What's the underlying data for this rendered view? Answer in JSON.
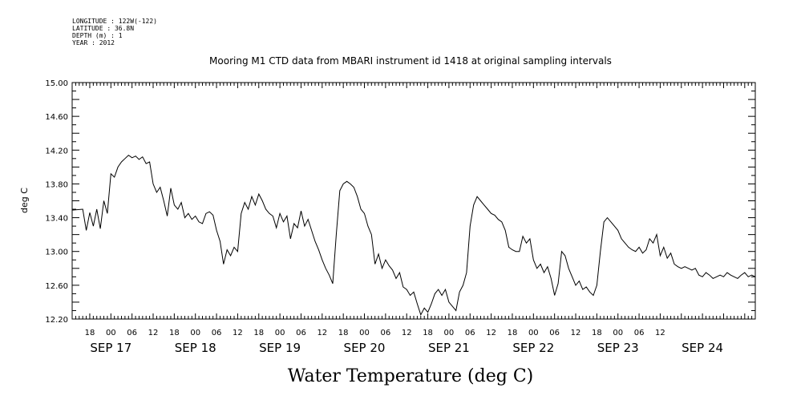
{
  "metadata": {
    "longitude": "LONGITUDE : 122W(-122)",
    "latitude": "LATITUDE : 36.8N",
    "depth": "DEPTH (m) : 1",
    "year": "YEAR : 2012"
  },
  "chart_data": {
    "type": "line",
    "title": "Mooring M1 CTD data from MBARI instrument id 1418 at original sampling intervals",
    "xlabel": "Water Temperature (deg C)",
    "ylabel": "deg C",
    "ylim": [
      12.2,
      15.0
    ],
    "xlim": [
      "2012-09-16 13:00",
      "2012-09-24 15:00"
    ],
    "y_ticks": [
      "12.20",
      "12.60",
      "13.00",
      "13.40",
      "13.80",
      "14.20",
      "14.60",
      "15.00"
    ],
    "x_hour_ticks": [
      {
        "t": "2012-09-16 18:00",
        "label": "18"
      },
      {
        "t": "2012-09-17 00:00",
        "label": "00"
      },
      {
        "t": "2012-09-17 06:00",
        "label": "06"
      },
      {
        "t": "2012-09-17 12:00",
        "label": "12"
      },
      {
        "t": "2012-09-17 18:00",
        "label": "18"
      },
      {
        "t": "2012-09-18 00:00",
        "label": "00"
      },
      {
        "t": "2012-09-18 06:00",
        "label": "06"
      },
      {
        "t": "2012-09-18 12:00",
        "label": "12"
      },
      {
        "t": "2012-09-18 18:00",
        "label": "18"
      },
      {
        "t": "2012-09-19 00:00",
        "label": "00"
      },
      {
        "t": "2012-09-19 06:00",
        "label": "06"
      },
      {
        "t": "2012-09-19 12:00",
        "label": "12"
      },
      {
        "t": "2012-09-19 18:00",
        "label": "18"
      },
      {
        "t": "2012-09-20 00:00",
        "label": "00"
      },
      {
        "t": "2012-09-20 06:00",
        "label": "06"
      },
      {
        "t": "2012-09-20 12:00",
        "label": "12"
      },
      {
        "t": "2012-09-20 18:00",
        "label": "18"
      },
      {
        "t": "2012-09-21 00:00",
        "label": "00"
      },
      {
        "t": "2012-09-21 06:00",
        "label": "06"
      },
      {
        "t": "2012-09-21 12:00",
        "label": "12"
      },
      {
        "t": "2012-09-21 18:00",
        "label": "18"
      },
      {
        "t": "2012-09-22 00:00",
        "label": "00"
      },
      {
        "t": "2012-09-22 06:00",
        "label": "06"
      },
      {
        "t": "2012-09-22 12:00",
        "label": "12"
      },
      {
        "t": "2012-09-22 18:00",
        "label": "18"
      },
      {
        "t": "2012-09-23 00:00",
        "label": "00"
      },
      {
        "t": "2012-09-23 06:00",
        "label": "06"
      },
      {
        "t": "2012-09-23 12:00",
        "label": "12"
      }
    ],
    "x_date_labels": [
      {
        "t": "2012-09-17 00:00",
        "label": "SEP 17"
      },
      {
        "t": "2012-09-18 00:00",
        "label": "SEP 18"
      },
      {
        "t": "2012-09-19 00:00",
        "label": "SEP 19"
      },
      {
        "t": "2012-09-20 00:00",
        "label": "SEP 20"
      },
      {
        "t": "2012-09-21 00:00",
        "label": "SEP 21"
      },
      {
        "t": "2012-09-22 00:00",
        "label": "SEP 22"
      },
      {
        "t": "2012-09-23 00:00",
        "label": "SEP 23"
      },
      {
        "t": "2012-09-24 00:00",
        "label": "SEP 24"
      }
    ],
    "grid": false,
    "series": [
      {
        "color": "#000000",
        "points": [
          [
            "2012-09-16 13:00",
            13.49
          ],
          [
            "2012-09-16 16:00",
            13.5
          ],
          [
            "2012-09-16 17:00",
            13.25
          ],
          [
            "2012-09-16 18:00",
            13.46
          ],
          [
            "2012-09-16 19:00",
            13.3
          ],
          [
            "2012-09-16 20:00",
            13.5
          ],
          [
            "2012-09-16 21:00",
            13.27
          ],
          [
            "2012-09-16 22:00",
            13.6
          ],
          [
            "2012-09-16 23:00",
            13.45
          ],
          [
            "2012-09-17 00:00",
            13.92
          ],
          [
            "2012-09-17 01:00",
            13.88
          ],
          [
            "2012-09-17 02:00",
            14.0
          ],
          [
            "2012-09-17 03:00",
            14.06
          ],
          [
            "2012-09-17 04:00",
            14.1
          ],
          [
            "2012-09-17 05:00",
            14.14
          ],
          [
            "2012-09-17 06:00",
            14.11
          ],
          [
            "2012-09-17 07:00",
            14.13
          ],
          [
            "2012-09-17 08:00",
            14.09
          ],
          [
            "2012-09-17 09:00",
            14.12
          ],
          [
            "2012-09-17 10:00",
            14.04
          ],
          [
            "2012-09-17 11:00",
            14.06
          ],
          [
            "2012-09-17 12:00",
            13.8
          ],
          [
            "2012-09-17 13:00",
            13.7
          ],
          [
            "2012-09-17 14:00",
            13.76
          ],
          [
            "2012-09-17 15:00",
            13.6
          ],
          [
            "2012-09-17 16:00",
            13.42
          ],
          [
            "2012-09-17 17:00",
            13.75
          ],
          [
            "2012-09-17 18:00",
            13.55
          ],
          [
            "2012-09-17 19:00",
            13.5
          ],
          [
            "2012-09-17 20:00",
            13.58
          ],
          [
            "2012-09-17 21:00",
            13.4
          ],
          [
            "2012-09-17 22:00",
            13.45
          ],
          [
            "2012-09-17 23:00",
            13.38
          ],
          [
            "2012-09-18 00:00",
            13.42
          ],
          [
            "2012-09-18 01:00",
            13.35
          ],
          [
            "2012-09-18 02:00",
            13.33
          ],
          [
            "2012-09-18 03:00",
            13.45
          ],
          [
            "2012-09-18 04:00",
            13.47
          ],
          [
            "2012-09-18 05:00",
            13.43
          ],
          [
            "2012-09-18 06:00",
            13.25
          ],
          [
            "2012-09-18 07:00",
            13.12
          ],
          [
            "2012-09-18 08:00",
            12.85
          ],
          [
            "2012-09-18 09:00",
            13.02
          ],
          [
            "2012-09-18 10:00",
            12.95
          ],
          [
            "2012-09-18 11:00",
            13.05
          ],
          [
            "2012-09-18 12:00",
            13.0
          ],
          [
            "2012-09-18 13:00",
            13.45
          ],
          [
            "2012-09-18 14:00",
            13.58
          ],
          [
            "2012-09-18 15:00",
            13.5
          ],
          [
            "2012-09-18 16:00",
            13.65
          ],
          [
            "2012-09-18 17:00",
            13.55
          ],
          [
            "2012-09-18 18:00",
            13.68
          ],
          [
            "2012-09-18 19:00",
            13.6
          ],
          [
            "2012-09-18 20:00",
            13.5
          ],
          [
            "2012-09-18 21:00",
            13.45
          ],
          [
            "2012-09-18 22:00",
            13.42
          ],
          [
            "2012-09-18 23:00",
            13.28
          ],
          [
            "2012-09-19 00:00",
            13.45
          ],
          [
            "2012-09-19 01:00",
            13.35
          ],
          [
            "2012-09-19 02:00",
            13.42
          ],
          [
            "2012-09-19 03:00",
            13.15
          ],
          [
            "2012-09-19 04:00",
            13.33
          ],
          [
            "2012-09-19 05:00",
            13.28
          ],
          [
            "2012-09-19 06:00",
            13.48
          ],
          [
            "2012-09-19 07:00",
            13.3
          ],
          [
            "2012-09-19 08:00",
            13.38
          ],
          [
            "2012-09-19 09:00",
            13.25
          ],
          [
            "2012-09-19 10:00",
            13.12
          ],
          [
            "2012-09-19 11:00",
            13.02
          ],
          [
            "2012-09-19 12:00",
            12.9
          ],
          [
            "2012-09-19 13:00",
            12.8
          ],
          [
            "2012-09-19 14:00",
            12.72
          ],
          [
            "2012-09-19 15:00",
            12.62
          ],
          [
            "2012-09-19 16:00",
            13.2
          ],
          [
            "2012-09-19 17:00",
            13.72
          ],
          [
            "2012-09-19 18:00",
            13.8
          ],
          [
            "2012-09-19 19:00",
            13.83
          ],
          [
            "2012-09-19 20:00",
            13.8
          ],
          [
            "2012-09-19 21:00",
            13.76
          ],
          [
            "2012-09-19 22:00",
            13.65
          ],
          [
            "2012-09-19 23:00",
            13.5
          ],
          [
            "2012-09-20 00:00",
            13.45
          ],
          [
            "2012-09-20 01:00",
            13.3
          ],
          [
            "2012-09-20 02:00",
            13.2
          ],
          [
            "2012-09-20 03:00",
            12.85
          ],
          [
            "2012-09-20 04:00",
            12.97
          ],
          [
            "2012-09-20 05:00",
            12.8
          ],
          [
            "2012-09-20 06:00",
            12.9
          ],
          [
            "2012-09-20 07:00",
            12.83
          ],
          [
            "2012-09-20 08:00",
            12.78
          ],
          [
            "2012-09-20 09:00",
            12.68
          ],
          [
            "2012-09-20 10:00",
            12.75
          ],
          [
            "2012-09-20 11:00",
            12.58
          ],
          [
            "2012-09-20 12:00",
            12.55
          ],
          [
            "2012-09-20 13:00",
            12.48
          ],
          [
            "2012-09-20 14:00",
            12.52
          ],
          [
            "2012-09-20 15:00",
            12.38
          ],
          [
            "2012-09-20 16:00",
            12.25
          ],
          [
            "2012-09-20 17:00",
            12.33
          ],
          [
            "2012-09-20 18:00",
            12.28
          ],
          [
            "2012-09-20 19:00",
            12.38
          ],
          [
            "2012-09-20 20:00",
            12.5
          ],
          [
            "2012-09-20 21:00",
            12.55
          ],
          [
            "2012-09-20 22:00",
            12.48
          ],
          [
            "2012-09-20 23:00",
            12.55
          ],
          [
            "2012-09-21 00:00",
            12.4
          ],
          [
            "2012-09-21 01:00",
            12.35
          ],
          [
            "2012-09-21 02:00",
            12.3
          ],
          [
            "2012-09-21 03:00",
            12.52
          ],
          [
            "2012-09-21 04:00",
            12.6
          ],
          [
            "2012-09-21 05:00",
            12.75
          ],
          [
            "2012-09-21 06:00",
            13.3
          ],
          [
            "2012-09-21 07:00",
            13.55
          ],
          [
            "2012-09-21 08:00",
            13.65
          ],
          [
            "2012-09-21 09:00",
            13.6
          ],
          [
            "2012-09-21 10:00",
            13.55
          ],
          [
            "2012-09-21 11:00",
            13.5
          ],
          [
            "2012-09-21 12:00",
            13.45
          ],
          [
            "2012-09-21 13:00",
            13.43
          ],
          [
            "2012-09-21 14:00",
            13.38
          ],
          [
            "2012-09-21 15:00",
            13.35
          ],
          [
            "2012-09-21 16:00",
            13.25
          ],
          [
            "2012-09-21 17:00",
            13.05
          ],
          [
            "2012-09-21 18:00",
            13.02
          ],
          [
            "2012-09-21 19:00",
            13.0
          ],
          [
            "2012-09-21 20:00",
            13.0
          ],
          [
            "2012-09-21 21:00",
            13.18
          ],
          [
            "2012-09-21 22:00",
            13.1
          ],
          [
            "2012-09-21 23:00",
            13.15
          ],
          [
            "2012-09-22 00:00",
            12.9
          ],
          [
            "2012-09-22 01:00",
            12.8
          ],
          [
            "2012-09-22 02:00",
            12.85
          ],
          [
            "2012-09-22 03:00",
            12.75
          ],
          [
            "2012-09-22 04:00",
            12.82
          ],
          [
            "2012-09-22 05:00",
            12.68
          ],
          [
            "2012-09-22 06:00",
            12.48
          ],
          [
            "2012-09-22 07:00",
            12.62
          ],
          [
            "2012-09-22 08:00",
            13.0
          ],
          [
            "2012-09-22 09:00",
            12.95
          ],
          [
            "2012-09-22 10:00",
            12.8
          ],
          [
            "2012-09-22 11:00",
            12.7
          ],
          [
            "2012-09-22 12:00",
            12.6
          ],
          [
            "2012-09-22 13:00",
            12.65
          ],
          [
            "2012-09-22 14:00",
            12.55
          ],
          [
            "2012-09-22 15:00",
            12.58
          ],
          [
            "2012-09-22 16:00",
            12.52
          ],
          [
            "2012-09-22 17:00",
            12.48
          ],
          [
            "2012-09-22 18:00",
            12.6
          ],
          [
            "2012-09-22 19:00",
            13.0
          ],
          [
            "2012-09-22 20:00",
            13.35
          ],
          [
            "2012-09-22 21:00",
            13.4
          ],
          [
            "2012-09-22 22:00",
            13.35
          ],
          [
            "2012-09-22 23:00",
            13.3
          ],
          [
            "2012-09-23 00:00",
            13.25
          ],
          [
            "2012-09-23 01:00",
            13.15
          ],
          [
            "2012-09-23 02:00",
            13.1
          ],
          [
            "2012-09-23 03:00",
            13.05
          ],
          [
            "2012-09-23 04:00",
            13.02
          ],
          [
            "2012-09-23 05:00",
            13.0
          ],
          [
            "2012-09-23 06:00",
            13.05
          ],
          [
            "2012-09-23 07:00",
            12.98
          ],
          [
            "2012-09-23 08:00",
            13.02
          ],
          [
            "2012-09-23 09:00",
            13.15
          ],
          [
            "2012-09-23 10:00",
            13.1
          ],
          [
            "2012-09-23 11:00",
            13.2
          ],
          [
            "2012-09-23 12:00",
            12.95
          ],
          [
            "2012-09-23 13:00",
            13.05
          ],
          [
            "2012-09-23 14:00",
            12.92
          ],
          [
            "2012-09-23 15:00",
            12.98
          ],
          [
            "2012-09-23 16:00",
            12.85
          ],
          [
            "2012-09-23 17:00",
            12.82
          ],
          [
            "2012-09-23 18:00",
            12.8
          ],
          [
            "2012-09-23 19:00",
            12.82
          ],
          [
            "2012-09-23 20:00",
            12.8
          ],
          [
            "2012-09-23 21:00",
            12.78
          ],
          [
            "2012-09-23 22:00",
            12.8
          ],
          [
            "2012-09-23 23:00",
            12.72
          ],
          [
            "2012-09-24 00:00",
            12.7
          ],
          [
            "2012-09-24 01:00",
            12.75
          ],
          [
            "2012-09-24 02:00",
            12.72
          ],
          [
            "2012-09-24 03:00",
            12.68
          ],
          [
            "2012-09-24 04:00",
            12.7
          ],
          [
            "2012-09-24 05:00",
            12.72
          ],
          [
            "2012-09-24 06:00",
            12.7
          ],
          [
            "2012-09-24 07:00",
            12.75
          ],
          [
            "2012-09-24 08:00",
            12.72
          ],
          [
            "2012-09-24 09:00",
            12.7
          ],
          [
            "2012-09-24 10:00",
            12.68
          ],
          [
            "2012-09-24 11:00",
            12.72
          ],
          [
            "2012-09-24 12:00",
            12.75
          ],
          [
            "2012-09-24 13:00",
            12.7
          ],
          [
            "2012-09-24 14:00",
            12.72
          ],
          [
            "2012-09-24 15:00",
            12.7
          ]
        ]
      }
    ]
  }
}
